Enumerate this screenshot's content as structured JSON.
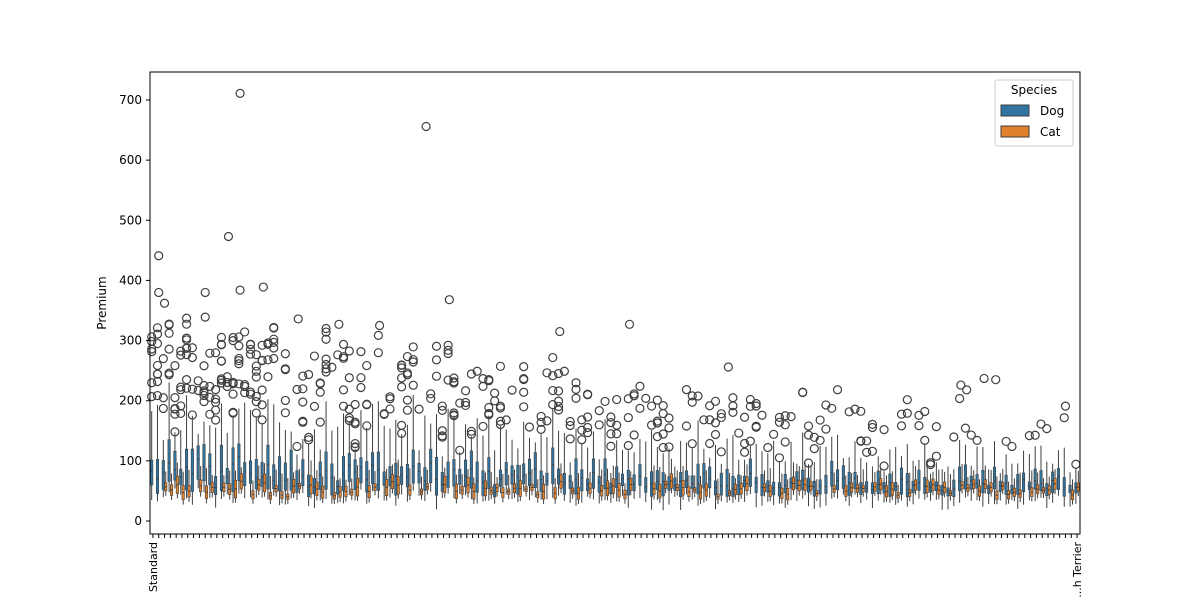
{
  "chart_data": {
    "type": "box",
    "ylabel": "Premium",
    "ylim": [
      -20,
      745
    ],
    "yticks": [
      0,
      100,
      200,
      300,
      400,
      500,
      600,
      700
    ],
    "legend": {
      "title": "Species",
      "placement": "top-right",
      "entries": [
        {
          "name": "Dog",
          "color": "#3274a1"
        },
        {
          "name": "Cat",
          "color": "#e1812c"
        }
      ]
    },
    "category_count": 160,
    "first_category_label": "Standard",
    "last_category_label": "...h Terrier",
    "series": [
      {
        "name": "Dog",
        "color": "#3274a1"
      },
      {
        "name": "Cat",
        "color": "#e1812c"
      }
    ],
    "notable_outliers": [
      {
        "category_index": 1,
        "value": 441
      },
      {
        "category_index": 1,
        "value": 380
      },
      {
        "category_index": 3,
        "value": 362
      },
      {
        "category_index": 13,
        "value": 380
      },
      {
        "category_index": 13,
        "value": 339
      },
      {
        "category_index": 18,
        "value": 473
      },
      {
        "category_index": 22,
        "value": 711
      },
      {
        "category_index": 22,
        "value": 384
      },
      {
        "category_index": 28,
        "value": 389
      },
      {
        "category_index": 36,
        "value": 336
      },
      {
        "category_index": 46,
        "value": 327
      },
      {
        "category_index": 56,
        "value": 325
      },
      {
        "category_index": 68,
        "value": 656
      },
      {
        "category_index": 74,
        "value": 368
      },
      {
        "category_index": 100,
        "value": 315
      },
      {
        "category_index": 118,
        "value": 327
      },
      {
        "category_index": 143,
        "value": 256
      },
      {
        "category_index": 200,
        "value": 226
      },
      {
        "category_index": 201,
        "value": 218
      },
      {
        "category_index": 206,
        "value": 237
      },
      {
        "category_index": 209,
        "value": 235
      },
      {
        "category_index": 225,
        "value": 191
      }
    ]
  }
}
